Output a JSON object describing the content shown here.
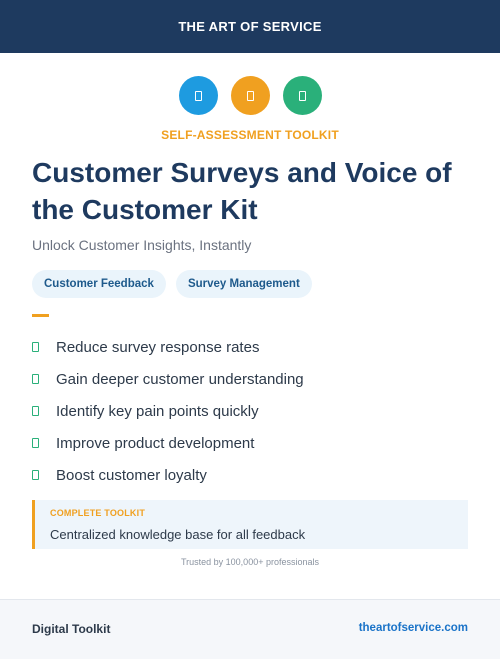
{
  "header": {
    "title": "THE ART OF SERVICE"
  },
  "icons": [
    {
      "name": "toolkit-icon-1",
      "color": "#1e9be0"
    },
    {
      "name": "toolkit-icon-2",
      "color": "#f0a020"
    },
    {
      "name": "toolkit-icon-3",
      "color": "#2ab07a"
    }
  ],
  "kicker": "SELF-ASSESSMENT TOOLKIT",
  "title": "Customer Surveys and Voice of the Customer Kit",
  "subtitle": "Unlock Customer Insights, Instantly",
  "tags": [
    "Customer Feedback",
    "Survey Management"
  ],
  "features": [
    "Reduce survey response rates",
    "Gain deeper customer understanding",
    "Identify key pain points quickly",
    "Improve product development",
    "Boost customer loyalty"
  ],
  "callout": {
    "label": "COMPLETE TOOLKIT",
    "text": "Centralized knowledge base for all feedback"
  },
  "trusted": "Trusted by 100,000+ professionals",
  "footer": {
    "left": "Digital Toolkit",
    "right": "theartofservice.com"
  },
  "colors": {
    "navy": "#1e3a5f",
    "accent_orange": "#f0a020",
    "accent_blue": "#1e9be0",
    "accent_green": "#2ab07a"
  }
}
